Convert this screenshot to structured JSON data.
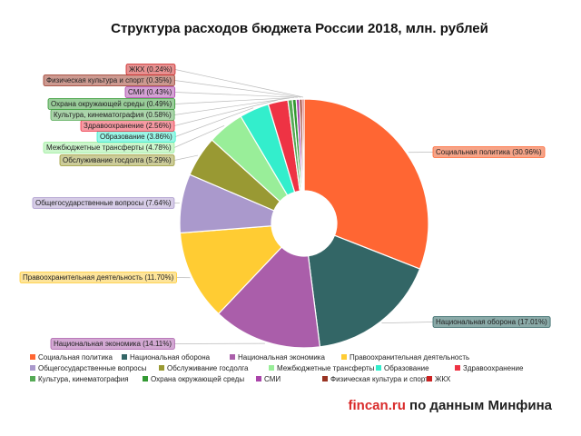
{
  "chart_data": {
    "type": "pie",
    "variant": "donut",
    "title": "Структура расходов бюджета России 2018, млн. рублей",
    "slices": [
      {
        "name": "Социальная политика",
        "label": "Социальная политика (30.96%)",
        "value": 30.96,
        "color": "#ff6633",
        "box": "#f6a488",
        "side": "right"
      },
      {
        "name": "Национальная оборона",
        "label": "Национальная оборона (17.01%)",
        "value": 17.01,
        "color": "#336666",
        "box": "#8aaaa8",
        "side": "right"
      },
      {
        "name": "Национальная экономика",
        "label": "Национальная экономика (14.11%)",
        "value": 14.11,
        "color": "#aa5eaa",
        "box": "#d3a8d3",
        "side": "left"
      },
      {
        "name": "Правоохранительная деятельность",
        "label": "Правоохранительная деятельность (11.70%)",
        "value": 11.7,
        "color": "#ffcc33",
        "box": "#fde49a",
        "side": "left"
      },
      {
        "name": "Общегосударственные вопросы",
        "label": "Общегосударственные вопросы (7.64%)",
        "value": 7.64,
        "color": "#aa99cc",
        "box": "#d6cce6",
        "side": "left"
      },
      {
        "name": "Обслуживание госдолга",
        "label": "Обслуживание госдолга (5.29%)",
        "value": 5.29,
        "color": "#999933",
        "box": "#cccc99",
        "side": "left"
      },
      {
        "name": "Межбюджетные трансферты",
        "label": "Межбюджетные трансферты (4.78%)",
        "value": 4.78,
        "color": "#99ee99",
        "box": "#ccf6cc",
        "side": "left"
      },
      {
        "name": "Образование",
        "label": "Образование (3.86%)",
        "value": 3.86,
        "color": "#33eecc",
        "box": "#99f6e6",
        "side": "left"
      },
      {
        "name": "Здравоохранение",
        "label": "Здравоохранение (2.56%)",
        "value": 2.56,
        "color": "#ee3344",
        "box": "#f699a2",
        "side": "left"
      },
      {
        "name": "Культура, кинематография",
        "label": "Культура, кинематография (0.58%)",
        "value": 0.58,
        "color": "#55aa55",
        "box": "#aad4aa",
        "side": "left"
      },
      {
        "name": "Охрана окружающей среды",
        "label": "Охрана окружающей среды (0.49%)",
        "value": 0.49,
        "color": "#339933",
        "box": "#99cc99",
        "side": "left"
      },
      {
        "name": "СМИ",
        "label": "СМИ (0.43%)",
        "value": 0.43,
        "color": "#aa44aa",
        "box": "#d4a2d4",
        "side": "left"
      },
      {
        "name": "Физическая культура и спорт",
        "label": "Физическая культура и спорт (0.35%)",
        "value": 0.35,
        "color": "#993322",
        "box": "#cc9990",
        "side": "left"
      },
      {
        "name": "ЖКХ",
        "label": "ЖКХ (0.24%)",
        "value": 0.24,
        "color": "#cc2222",
        "box": "#e69090",
        "side": "left"
      }
    ],
    "legend_position": "bottom"
  },
  "footer": {
    "brand": "fincan.ru",
    "text": " по данным Минфина"
  }
}
